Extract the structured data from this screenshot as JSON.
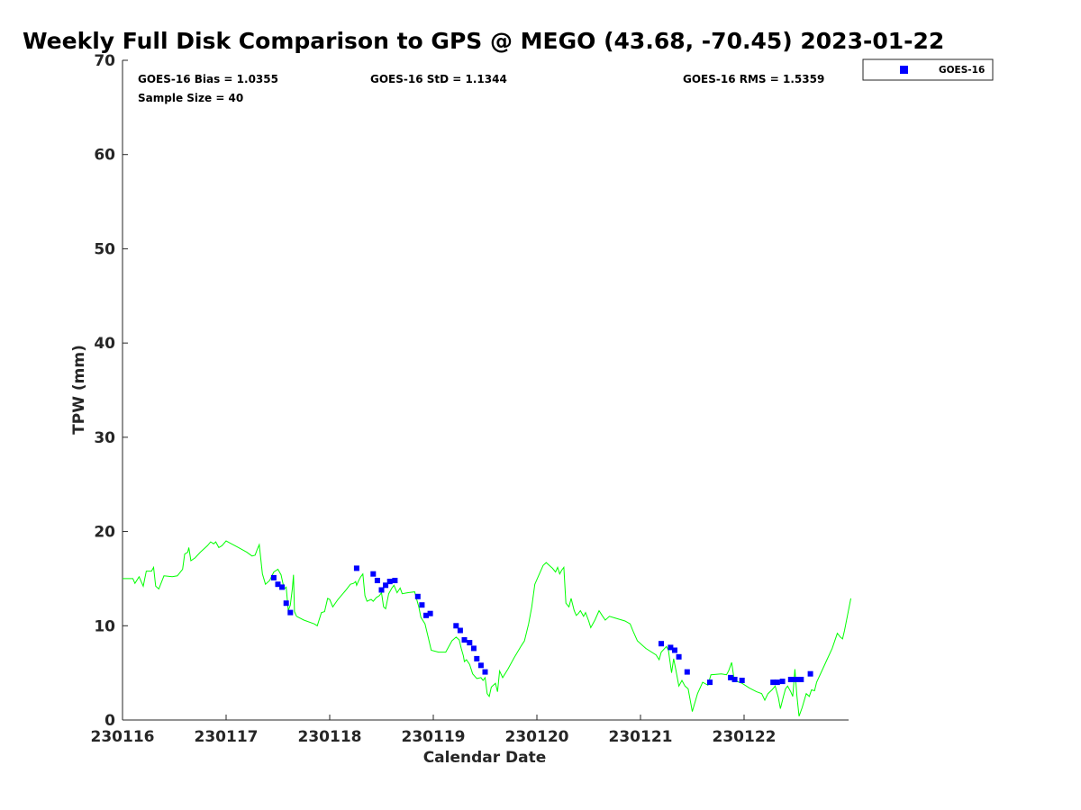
{
  "chart_data": {
    "type": "line",
    "title": "Weekly Full Disk Comparison to GPS @ MEGO (43.68, -70.45) 2023-01-22",
    "xlabel": "Calendar Date",
    "ylabel": "TPW (mm)",
    "xlim": [
      230116,
      230123
    ],
    "ylim": [
      0,
      70
    ],
    "x_tick_labels": [
      "230116",
      "230117",
      "230118",
      "230119",
      "230120",
      "230121",
      "230122"
    ],
    "y_ticks": [
      "0",
      "10",
      "20",
      "30",
      "40",
      "50",
      "60",
      "70"
    ],
    "grid": false,
    "legend_position": "outside-top-right",
    "stats": {
      "bias": "GOES-16 Bias = 1.0355",
      "std": "GOES-16 StD = 1.1344",
      "rms": "GOES-16 RMS = 1.5359",
      "sample": "Sample Size = 40"
    },
    "gps_line": {
      "color": "#00ff00",
      "points": [
        [
          0.0,
          15.0
        ],
        [
          0.1,
          15.0
        ],
        [
          0.12,
          14.5
        ],
        [
          0.16,
          15.2
        ],
        [
          0.2,
          14.2
        ],
        [
          0.23,
          15.8
        ],
        [
          0.28,
          15.8
        ],
        [
          0.3,
          16.2
        ],
        [
          0.32,
          14.2
        ],
        [
          0.35,
          13.9
        ],
        [
          0.4,
          15.3
        ],
        [
          0.48,
          15.2
        ],
        [
          0.53,
          15.3
        ],
        [
          0.58,
          16.0
        ],
        [
          0.6,
          17.6
        ],
        [
          0.63,
          17.8
        ],
        [
          0.64,
          18.3
        ],
        [
          0.66,
          16.9
        ],
        [
          0.7,
          17.2
        ],
        [
          0.75,
          17.8
        ],
        [
          0.82,
          18.5
        ],
        [
          0.85,
          18.9
        ],
        [
          0.88,
          18.7
        ],
        [
          0.9,
          18.9
        ],
        [
          0.93,
          18.3
        ],
        [
          0.96,
          18.5
        ],
        [
          1.0,
          19.0
        ],
        [
          1.05,
          18.7
        ],
        [
          1.12,
          18.3
        ],
        [
          1.2,
          17.8
        ],
        [
          1.25,
          17.4
        ],
        [
          1.28,
          17.5
        ],
        [
          1.3,
          18.1
        ],
        [
          1.32,
          18.6
        ],
        [
          1.35,
          15.5
        ],
        [
          1.38,
          14.4
        ],
        [
          1.42,
          14.8
        ],
        [
          1.46,
          15.7
        ],
        [
          1.5,
          16.0
        ],
        [
          1.53,
          15.4
        ],
        [
          1.56,
          13.9
        ],
        [
          1.58,
          14.1
        ],
        [
          1.6,
          11.6
        ],
        [
          1.62,
          12.2
        ],
        [
          1.64,
          14.0
        ],
        [
          1.65,
          15.4
        ],
        [
          1.66,
          11.5
        ],
        [
          1.68,
          11.0
        ],
        [
          1.75,
          10.6
        ],
        [
          1.85,
          10.2
        ],
        [
          1.88,
          10.0
        ],
        [
          1.92,
          11.4
        ],
        [
          1.95,
          11.5
        ],
        [
          1.98,
          12.9
        ],
        [
          2.0,
          12.8
        ],
        [
          2.03,
          12.0
        ],
        [
          2.08,
          12.8
        ],
        [
          2.15,
          13.7
        ],
        [
          2.2,
          14.4
        ],
        [
          2.23,
          14.5
        ],
        [
          2.25,
          14.7
        ],
        [
          2.26,
          14.3
        ],
        [
          2.28,
          14.8
        ],
        [
          2.3,
          15.2
        ],
        [
          2.32,
          15.5
        ],
        [
          2.34,
          13.2
        ],
        [
          2.36,
          12.6
        ],
        [
          2.4,
          12.8
        ],
        [
          2.42,
          12.6
        ],
        [
          2.45,
          13.0
        ],
        [
          2.48,
          13.2
        ],
        [
          2.5,
          13.5
        ],
        [
          2.52,
          12.0
        ],
        [
          2.54,
          11.8
        ],
        [
          2.57,
          13.4
        ],
        [
          2.6,
          14.0
        ],
        [
          2.62,
          14.3
        ],
        [
          2.65,
          13.5
        ],
        [
          2.68,
          14.0
        ],
        [
          2.7,
          13.4
        ],
        [
          2.75,
          13.5
        ],
        [
          2.82,
          13.6
        ],
        [
          2.84,
          12.8
        ],
        [
          2.86,
          12.0
        ],
        [
          2.88,
          10.9
        ],
        [
          2.92,
          10.2
        ],
        [
          2.95,
          8.8
        ],
        [
          2.98,
          7.4
        ],
        [
          3.05,
          7.2
        ],
        [
          3.12,
          7.2
        ],
        [
          3.18,
          8.4
        ],
        [
          3.22,
          8.8
        ],
        [
          3.25,
          8.5
        ],
        [
          3.27,
          7.6
        ],
        [
          3.29,
          6.8
        ],
        [
          3.3,
          6.2
        ],
        [
          3.32,
          6.4
        ],
        [
          3.35,
          5.9
        ],
        [
          3.38,
          4.9
        ],
        [
          3.42,
          4.4
        ],
        [
          3.46,
          4.5
        ],
        [
          3.48,
          4.2
        ],
        [
          3.5,
          4.5
        ],
        [
          3.52,
          2.8
        ],
        [
          3.54,
          2.5
        ],
        [
          3.56,
          3.5
        ],
        [
          3.6,
          3.9
        ],
        [
          3.62,
          3.0
        ],
        [
          3.64,
          5.2
        ],
        [
          3.67,
          4.5
        ],
        [
          3.72,
          5.4
        ],
        [
          3.78,
          6.6
        ],
        [
          3.85,
          7.9
        ],
        [
          3.88,
          8.4
        ],
        [
          3.92,
          10.2
        ],
        [
          3.95,
          12.0
        ],
        [
          3.98,
          14.4
        ],
        [
          4.02,
          15.4
        ],
        [
          4.06,
          16.4
        ],
        [
          4.09,
          16.7
        ],
        [
          4.12,
          16.4
        ],
        [
          4.15,
          16.1
        ],
        [
          4.18,
          15.7
        ],
        [
          4.2,
          16.2
        ],
        [
          4.22,
          15.5
        ],
        [
          4.24,
          15.9
        ],
        [
          4.26,
          16.2
        ],
        [
          4.28,
          12.4
        ],
        [
          4.31,
          12.0
        ],
        [
          4.33,
          12.9
        ],
        [
          4.36,
          11.6
        ],
        [
          4.38,
          11.1
        ],
        [
          4.4,
          11.3
        ],
        [
          4.42,
          11.6
        ],
        [
          4.45,
          11.0
        ],
        [
          4.47,
          11.4
        ],
        [
          4.5,
          10.5
        ],
        [
          4.52,
          9.8
        ],
        [
          4.56,
          10.6
        ],
        [
          4.6,
          11.6
        ],
        [
          4.63,
          11.1
        ],
        [
          4.66,
          10.6
        ],
        [
          4.7,
          11.0
        ],
        [
          4.76,
          10.8
        ],
        [
          4.85,
          10.5
        ],
        [
          4.9,
          10.2
        ],
        [
          4.93,
          9.4
        ],
        [
          4.97,
          8.4
        ],
        [
          5.05,
          7.6
        ],
        [
          5.15,
          6.9
        ],
        [
          5.18,
          6.4
        ],
        [
          5.2,
          7.2
        ],
        [
          5.25,
          7.8
        ],
        [
          5.27,
          7.4
        ],
        [
          5.3,
          5.0
        ],
        [
          5.32,
          6.5
        ],
        [
          5.34,
          5.4
        ],
        [
          5.37,
          3.6
        ],
        [
          5.4,
          4.2
        ],
        [
          5.43,
          3.6
        ],
        [
          5.46,
          3.3
        ],
        [
          5.5,
          0.9
        ],
        [
          5.55,
          2.8
        ],
        [
          5.6,
          4.0
        ],
        [
          5.65,
          3.7
        ],
        [
          5.68,
          4.8
        ],
        [
          5.78,
          4.9
        ],
        [
          5.83,
          4.8
        ],
        [
          5.85,
          5.2
        ],
        [
          5.88,
          6.1
        ],
        [
          5.9,
          4.6
        ],
        [
          5.93,
          4.1
        ],
        [
          5.98,
          3.9
        ],
        [
          6.05,
          3.4
        ],
        [
          6.12,
          3.0
        ],
        [
          6.17,
          2.8
        ],
        [
          6.2,
          2.1
        ],
        [
          6.23,
          2.8
        ],
        [
          6.27,
          3.2
        ],
        [
          6.3,
          3.6
        ],
        [
          6.33,
          2.4
        ],
        [
          6.35,
          1.2
        ],
        [
          6.38,
          2.5
        ],
        [
          6.4,
          3.3
        ],
        [
          6.42,
          3.6
        ],
        [
          6.45,
          3.0
        ],
        [
          6.47,
          2.5
        ],
        [
          6.48,
          3.9
        ],
        [
          6.49,
          5.4
        ],
        [
          6.51,
          2.6
        ],
        [
          6.53,
          0.4
        ],
        [
          6.56,
          1.3
        ],
        [
          6.6,
          2.8
        ],
        [
          6.63,
          2.5
        ],
        [
          6.65,
          3.2
        ],
        [
          6.68,
          3.1
        ],
        [
          6.7,
          4.0
        ],
        [
          6.75,
          5.2
        ],
        [
          6.8,
          6.4
        ],
        [
          6.85,
          7.6
        ],
        [
          6.9,
          9.2
        ],
        [
          6.93,
          8.8
        ],
        [
          6.95,
          8.6
        ],
        [
          6.97,
          9.5
        ],
        [
          7.0,
          11.2
        ],
        [
          7.03,
          12.9
        ]
      ]
    },
    "series": [
      {
        "name": "GOES-16",
        "color": "#0000ff",
        "points": [
          [
            1.46,
            15.1
          ],
          [
            1.5,
            14.4
          ],
          [
            1.54,
            14.1
          ],
          [
            1.58,
            12.4
          ],
          [
            1.62,
            11.4
          ],
          [
            2.26,
            16.1
          ],
          [
            2.42,
            15.5
          ],
          [
            2.46,
            14.8
          ],
          [
            2.5,
            13.8
          ],
          [
            2.54,
            14.3
          ],
          [
            2.58,
            14.7
          ],
          [
            2.63,
            14.8
          ],
          [
            2.85,
            13.1
          ],
          [
            2.89,
            12.2
          ],
          [
            2.93,
            11.1
          ],
          [
            2.97,
            11.3
          ],
          [
            3.22,
            10.0
          ],
          [
            3.26,
            9.5
          ],
          [
            3.3,
            8.5
          ],
          [
            3.35,
            8.2
          ],
          [
            3.39,
            7.6
          ],
          [
            3.42,
            6.5
          ],
          [
            3.46,
            5.8
          ],
          [
            3.5,
            5.1
          ],
          [
            5.2,
            8.1
          ],
          [
            5.29,
            7.7
          ],
          [
            5.33,
            7.4
          ],
          [
            5.37,
            6.7
          ],
          [
            5.45,
            5.1
          ],
          [
            5.67,
            4.0
          ],
          [
            5.87,
            4.5
          ],
          [
            5.91,
            4.3
          ],
          [
            5.98,
            4.2
          ],
          [
            6.28,
            4.0
          ],
          [
            6.32,
            4.0
          ],
          [
            6.37,
            4.1
          ],
          [
            6.45,
            4.3
          ],
          [
            6.5,
            4.3
          ],
          [
            6.55,
            4.3
          ],
          [
            6.64,
            4.9
          ]
        ]
      }
    ]
  }
}
